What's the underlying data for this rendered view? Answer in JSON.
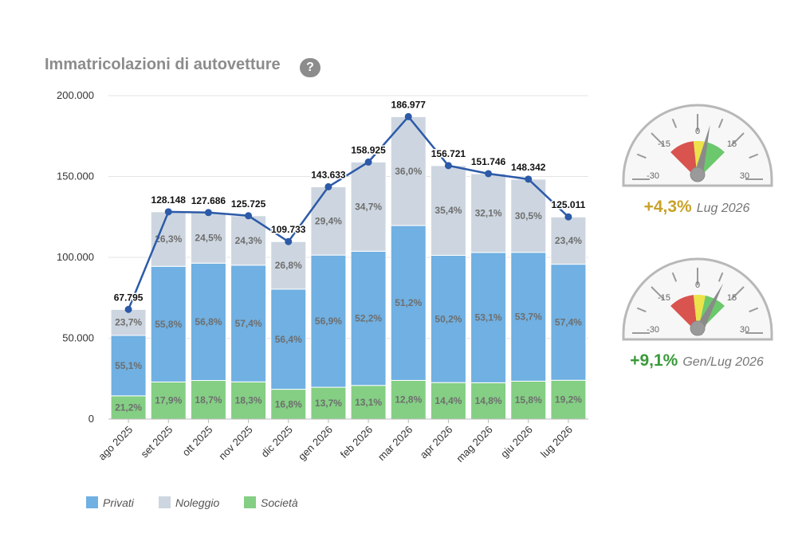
{
  "title": "Immatricolazioni di autovetture",
  "help_label": "?",
  "colors": {
    "privati": "#70b0e2",
    "noleggio": "#cdd6e0",
    "societa": "#84cf84",
    "line": "#2c5aa8"
  },
  "chart_data": {
    "type": "bar",
    "stacked": true,
    "categories": [
      "ago 2025",
      "set 2025",
      "ott 2025",
      "nov 2025",
      "dic 2025",
      "gen 2026",
      "feb 2026",
      "mar 2026",
      "apr 2026",
      "mag 2026",
      "giu 2026",
      "lug 2026"
    ],
    "totals": [
      67795,
      128148,
      127686,
      125725,
      109733,
      143633,
      158925,
      186977,
      156721,
      151746,
      148342,
      125011
    ],
    "total_labels": [
      "67.795",
      "128.148",
      "127.686",
      "125.725",
      "109.733",
      "143.633",
      "158.925",
      "186.977",
      "156.721",
      "151.746",
      "148.342",
      "125.011"
    ],
    "series": [
      {
        "name": "Società",
        "key": "societa",
        "percents": [
          21.2,
          17.9,
          18.7,
          18.3,
          16.8,
          13.7,
          13.1,
          12.8,
          14.4,
          14.8,
          15.8,
          19.2
        ],
        "labels": [
          "21,2%",
          "17,9%",
          "18,7%",
          "18,3%",
          "16,8%",
          "13,7%",
          "13,1%",
          "12,8%",
          "14,4%",
          "14,8%",
          "15,8%",
          "19,2%"
        ]
      },
      {
        "name": "Privati",
        "key": "privati",
        "percents": [
          55.1,
          55.8,
          56.8,
          57.4,
          56.4,
          56.9,
          52.2,
          51.2,
          50.2,
          53.1,
          53.7,
          57.4
        ],
        "labels": [
          "55,1%",
          "55,8%",
          "56,8%",
          "57,4%",
          "56,4%",
          "56,9%",
          "52,2%",
          "51,2%",
          "50,2%",
          "53,1%",
          "53,7%",
          "57,4%"
        ]
      },
      {
        "name": "Noleggio",
        "key": "noleggio",
        "percents": [
          23.7,
          26.3,
          24.5,
          24.3,
          26.8,
          29.4,
          34.7,
          36.0,
          35.4,
          32.1,
          30.5,
          23.4
        ],
        "labels": [
          "23,7%",
          "26,3%",
          "24,5%",
          "24,3%",
          "26,8%",
          "29,4%",
          "34,7%",
          "36,0%",
          "35,4%",
          "32,1%",
          "30,5%",
          "23,4%"
        ]
      }
    ],
    "ylim": [
      0,
      200000
    ],
    "yticks": [
      0,
      50000,
      100000,
      150000,
      200000
    ],
    "ytick_labels": [
      "0",
      "50.000",
      "100.000",
      "150.000",
      "200.000"
    ],
    "legend": [
      {
        "name": "Privati",
        "key": "privati"
      },
      {
        "name": "Noleggio",
        "key": "noleggio"
      },
      {
        "name": "Società",
        "key": "societa"
      }
    ],
    "legend_position": "bottom-left",
    "grid": true
  },
  "gauges": [
    {
      "value": 4.3,
      "pct_label": "+4,3%",
      "period": "Lug 2026",
      "color": "#c8a228",
      "ticks": [
        "-30",
        "-15",
        "0",
        "15",
        "30"
      ],
      "range": [
        -30,
        30
      ]
    },
    {
      "value": 9.1,
      "pct_label": "+9,1%",
      "period": "Gen/Lug 2026",
      "color": "#3a9a3a",
      "ticks": [
        "-30",
        "-15",
        "0",
        "15",
        "30"
      ],
      "range": [
        -30,
        30
      ]
    }
  ]
}
